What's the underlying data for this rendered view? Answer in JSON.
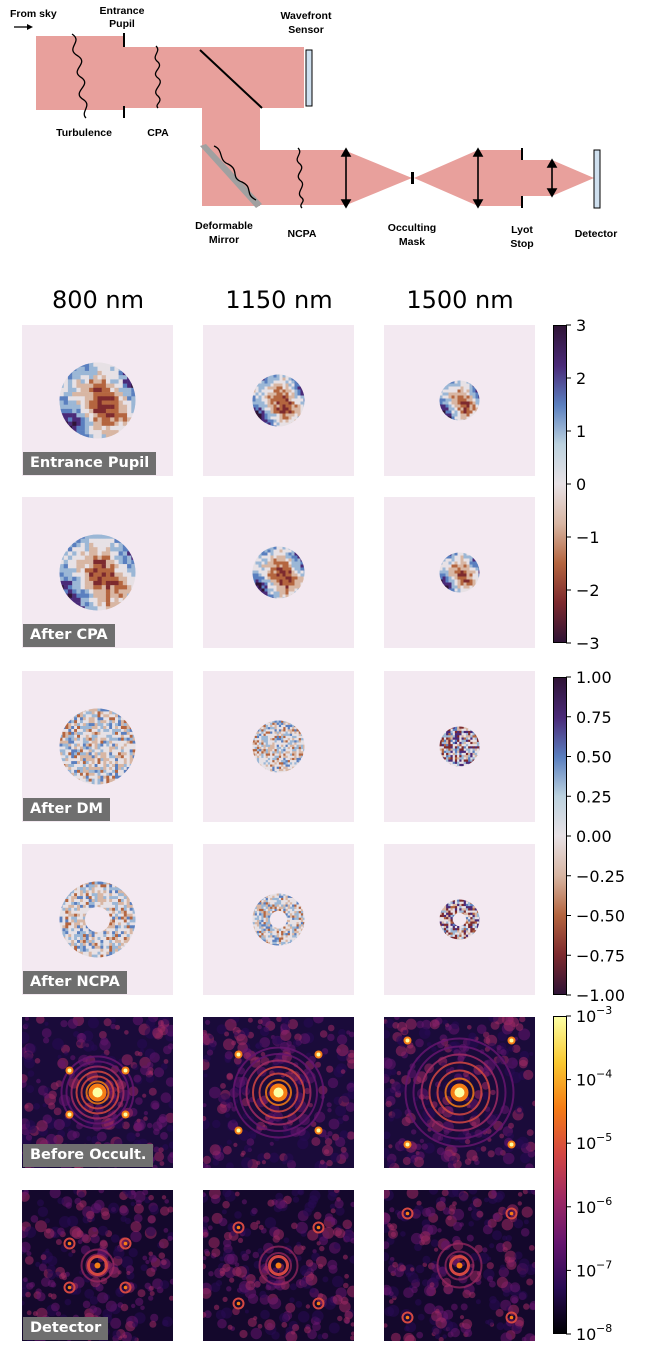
{
  "diagram": {
    "labels": {
      "from_sky": "From sky",
      "entrance_pupil_1": "Entrance",
      "entrance_pupil_2": "Pupil",
      "wavefront_1": "Wavefront",
      "wavefront_2": "Sensor",
      "turbulence": "Turbulence",
      "cpa": "CPA",
      "deformable_1": "Deformable",
      "deformable_2": "Mirror",
      "ncpa": "NCPA",
      "occulting_1": "Occulting",
      "occulting_2": "Mask",
      "lyot_1": "Lyot",
      "lyot_2": "Stop",
      "detector": "Detector"
    },
    "beam_color": "#e8a09c"
  },
  "columns": [
    "800 nm",
    "1150 nm",
    "1500 nm"
  ],
  "rows": [
    {
      "label": "Entrance Pupil",
      "kind": "phase_large"
    },
    {
      "label": "After CPA",
      "kind": "phase_large"
    },
    {
      "label": "After DM",
      "kind": "phase_small"
    },
    {
      "label": "After NCPA",
      "kind": "phase_ring"
    },
    {
      "label": "Before Occult.",
      "kind": "psf_bright"
    },
    {
      "label": "Detector",
      "kind": "psf_dark"
    }
  ],
  "colorbars": {
    "phase_large": {
      "ticks": [
        "3",
        "2",
        "1",
        "0",
        "−1",
        "−2",
        "−3"
      ]
    },
    "phase_small": {
      "ticks": [
        "1.00",
        "0.75",
        "0.50",
        "0.25",
        "0.00",
        "−0.25",
        "−0.50",
        "−0.75",
        "−1.00"
      ]
    },
    "log_intensity": {
      "ticks": [
        "10",
        "10",
        "10",
        "10",
        "10",
        "10"
      ],
      "exponents": [
        "−3",
        "−4",
        "−5",
        "−6",
        "−7",
        "−8"
      ]
    }
  },
  "colors": {
    "panel_bg": "#f3e9f1",
    "twilight_dark": "#2f1436",
    "twilight_blue": "#5a7fbf",
    "twilight_red": "#a3442f",
    "inferno_dark": "#0d0827",
    "inferno_bright": "#fcffa4"
  }
}
